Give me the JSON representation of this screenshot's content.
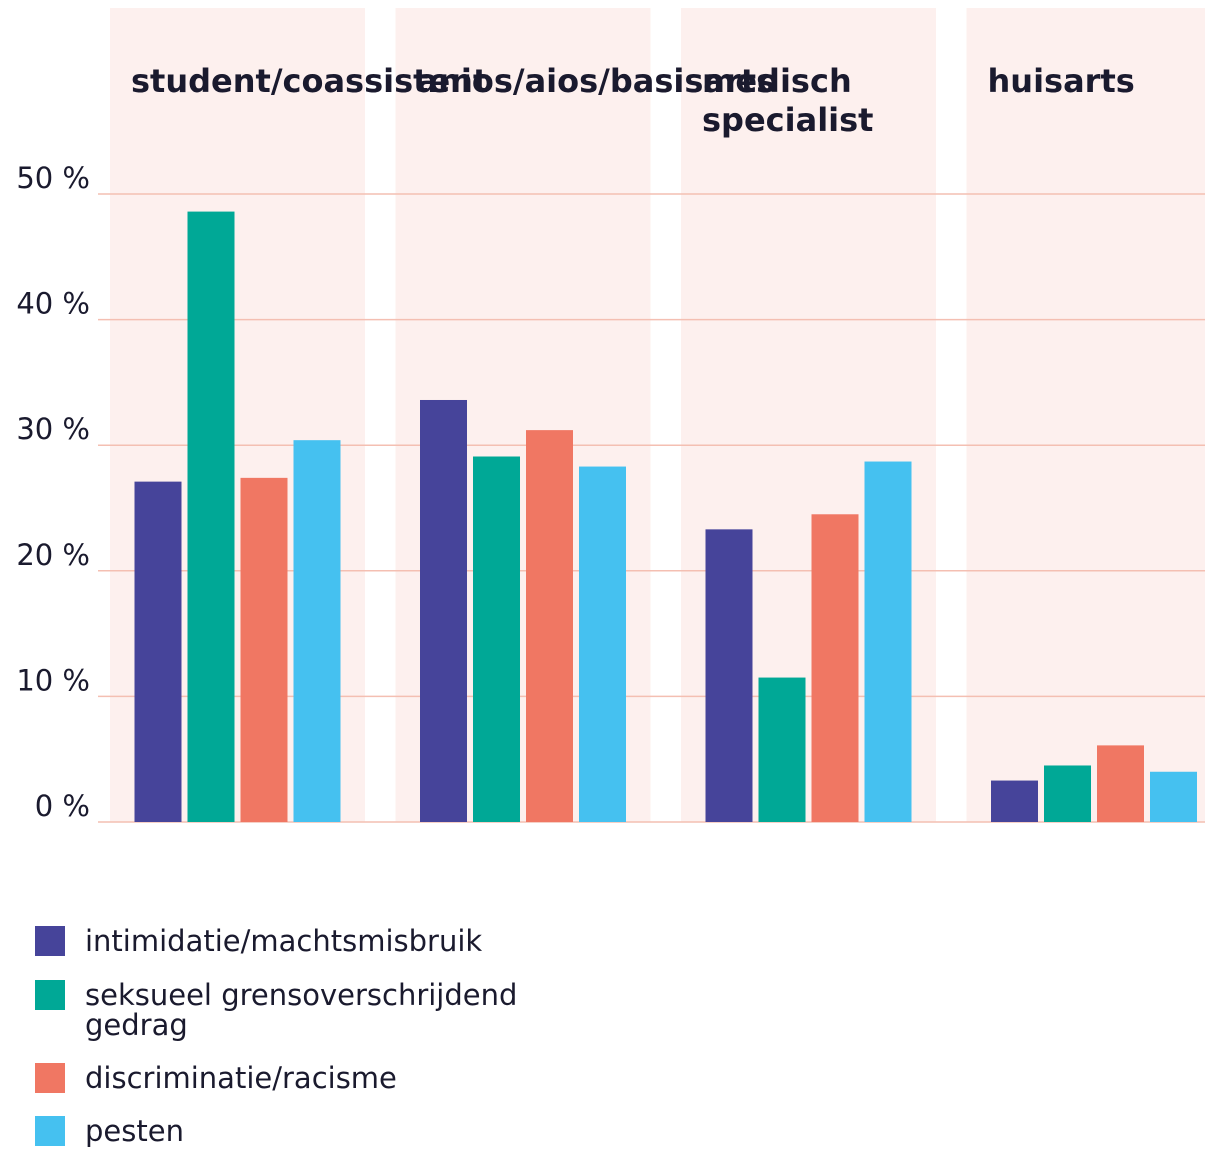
{
  "chart_data": {
    "type": "bar",
    "categories": [
      "student/coassistent",
      "anios/aios/basisarts",
      "medisch specialist",
      "huisarts"
    ],
    "series": [
      {
        "name": "intimidatie/machtsmisbruik",
        "color": "#46449a",
        "values": [
          27.1,
          33.6,
          23.3,
          3.3
        ]
      },
      {
        "name": "seksueel grensoverschrijdend gedrag",
        "color": "#00a896",
        "values": [
          48.6,
          29.1,
          11.5,
          4.5
        ]
      },
      {
        "name": "discriminatie/racisme",
        "color": "#f07763",
        "values": [
          27.4,
          31.2,
          24.5,
          6.1
        ]
      },
      {
        "name": "pesten",
        "color": "#45c1f0",
        "values": [
          30.4,
          28.3,
          28.7,
          4.0
        ]
      }
    ],
    "ylim": [
      0,
      50
    ],
    "yticks": [
      {
        "value": 0,
        "label": "0 %"
      },
      {
        "value": 10,
        "label": "10 %"
      },
      {
        "value": 20,
        "label": "20 %"
      },
      {
        "value": 30,
        "label": "30 %"
      },
      {
        "value": 40,
        "label": "40 %"
      },
      {
        "value": 50,
        "label": "50 %"
      }
    ],
    "grid": true
  }
}
